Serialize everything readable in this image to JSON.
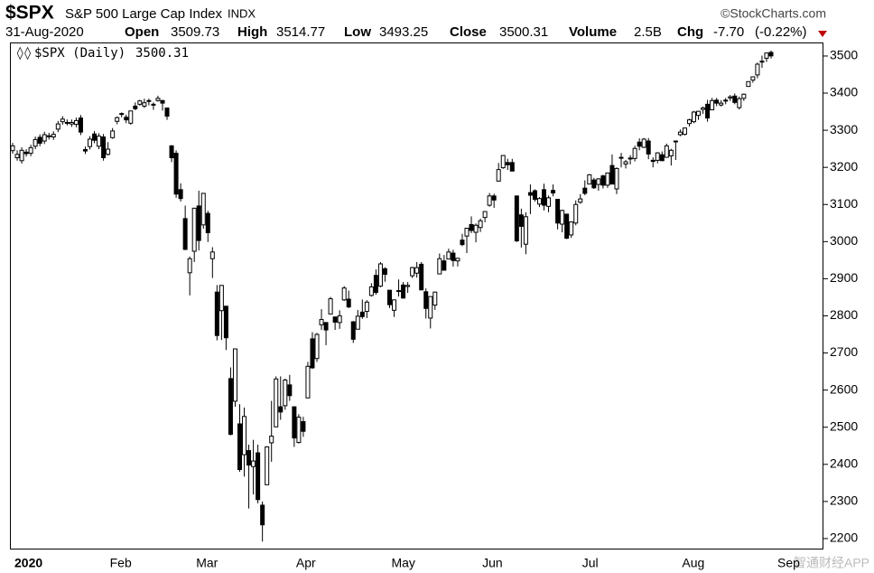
{
  "header": {
    "symbol": "$SPX",
    "name": "S&P 500 Large Cap Index",
    "exchange": "INDX",
    "source": "©StockCharts.com",
    "date": "31-Aug-2020",
    "open_label": "Open",
    "high_label": "High",
    "low_label": "Low",
    "close_label": "Close",
    "volume_label": "Volume",
    "volume": "2.5B",
    "chg_label": "Chg",
    "chg": "-7.70",
    "chg_pct": "(-0.22%)",
    "legend": "$SPX (Daily)",
    "watermark": "智通财经APP"
  },
  "chart_data": {
    "type": "candlestick",
    "colors": {
      "up": "#ffffff",
      "down": "#000000",
      "outline": "#000000"
    },
    "grid": false,
    "ylim": [
      2173,
      3534
    ],
    "yticks": [
      2200,
      2300,
      2400,
      2500,
      2600,
      2700,
      2800,
      2900,
      3000,
      3100,
      3200,
      3300,
      3400,
      3500
    ],
    "categories": [
      "2020",
      null,
      null,
      null,
      null,
      null,
      null,
      null,
      null,
      null,
      null,
      null,
      null,
      null,
      null,
      null,
      null,
      null,
      null,
      null,
      null,
      "Feb",
      null,
      null,
      null,
      null,
      null,
      null,
      null,
      null,
      null,
      null,
      null,
      null,
      null,
      null,
      null,
      null,
      null,
      null,
      "Mar",
      null,
      null,
      null,
      null,
      null,
      null,
      null,
      null,
      null,
      null,
      null,
      null,
      null,
      null,
      null,
      null,
      null,
      null,
      null,
      null,
      null,
      "Apr",
      null,
      null,
      null,
      null,
      null,
      null,
      null,
      null,
      null,
      null,
      null,
      null,
      null,
      null,
      null,
      null,
      null,
      null,
      null,
      null,
      "May",
      null,
      null,
      null,
      null,
      null,
      null,
      null,
      null,
      null,
      null,
      null,
      null,
      null,
      null,
      null,
      null,
      null,
      null,
      null,
      "Jun",
      null,
      null,
      null,
      null,
      null,
      null,
      null,
      null,
      null,
      null,
      null,
      null,
      null,
      null,
      null,
      null,
      null,
      null,
      null,
      null,
      null,
      "Jul",
      null,
      null,
      null,
      null,
      null,
      null,
      null,
      null,
      null,
      null,
      null,
      null,
      null,
      null,
      null,
      null,
      null,
      null,
      null,
      null,
      null,
      "Aug",
      null,
      null,
      null,
      null,
      null,
      null,
      null,
      null,
      null,
      null,
      null,
      null,
      null,
      null,
      null,
      null,
      null,
      null,
      null,
      null,
      "Sep"
    ],
    "open": [
      3245,
      3226,
      3218,
      3241,
      3238,
      3257,
      3281,
      3271,
      3285,
      3282,
      3303,
      3323,
      3321,
      3317,
      3316,
      3333,
      3248,
      3256,
      3290,
      3257,
      3282,
      3235,
      3280,
      3324,
      3344,
      3335,
      3319,
      3365,
      3370,
      3365,
      3378,
      3369,
      3380,
      3380,
      3360,
      3258,
      3238,
      3140,
      3062,
      2916,
      2974,
      3096,
      3045,
      3076,
      2954,
      2864,
      2814,
      2826,
      2631,
      2570,
      2509,
      2426,
      2437,
      2394,
      2431,
      2290,
      2345,
      2458,
      2501,
      2555,
      2558,
      2614,
      2555,
      2459,
      2515,
      2579,
      2738,
      2685,
      2776,
      2782,
      2805,
      2797,
      2782,
      2843,
      2845,
      2784,
      2764,
      2810,
      2812,
      2855,
      2909,
      2880,
      2927,
      2869,
      2815,
      2868,
      2883,
      2879,
      2908,
      2915,
      2939,
      2865,
      2794,
      2829,
      2913,
      2948,
      2953,
      2969,
      2948,
      3004,
      3015,
      3046,
      3025,
      3038,
      3065,
      3098,
      3123,
      3163,
      3199,
      3213,
      3213,
      3123,
      3072,
      2993,
      3132,
      3137,
      3101,
      3140,
      3095,
      3138,
      3114,
      3047,
      3074,
      3018,
      3050,
      3106,
      3144,
      3155,
      3166,
      3154,
      3177,
      3152,
      3205,
      3142,
      3225,
      3209,
      3224,
      3224,
      3268,
      3254,
      3271,
      3219,
      3219,
      3234,
      3227,
      3231,
      3270,
      3288,
      3289,
      3318,
      3323,
      3340,
      3356,
      3370,
      3355,
      3381,
      3368,
      3380,
      3387,
      3392,
      3361,
      3386,
      3418,
      3435,
      3449,
      3486,
      3494,
      3509.73,
      null
    ],
    "high": [
      3266,
      3246,
      3254,
      3249,
      3261,
      3283,
      3289,
      3296,
      3293,
      3297,
      3325,
      3338,
      3329,
      3329,
      3334,
      3341,
      3256,
      3284,
      3298,
      3292,
      3290,
      3268,
      3306,
      3337,
      3348,
      3342,
      3352,
      3375,
      3382,
      3385,
      3385,
      3375,
      3393,
      3382,
      3360,
      3260,
      3246,
      3157,
      3097,
      2960,
      3091,
      3137,
      3131,
      3083,
      2985,
      2883,
      2882,
      2826,
      2661,
      2711,
      2562,
      2553,
      2453,
      2466,
      2453,
      2300,
      2449,
      2571,
      2637,
      2637,
      2631,
      2641,
      2556,
      2535,
      2528,
      2676,
      2756,
      2754,
      2818,
      2782,
      2851,
      2797,
      2815,
      2880,
      2868,
      2786,
      2816,
      2844,
      2842,
      2888,
      2925,
      2945,
      2931,
      2869,
      2844,
      2898,
      2891,
      2891,
      2932,
      2945,
      2945,
      2874,
      2852,
      2865,
      2968,
      2964,
      2981,
      2978,
      2956,
      3021,
      3036,
      3068,
      3049,
      3062,
      3081,
      3131,
      3129,
      3212,
      3233,
      3223,
      3223,
      3123,
      3089,
      3079,
      3154,
      3141,
      3120,
      3156,
      3124,
      3154,
      3115,
      3086,
      3074,
      3054,
      3111,
      3128,
      3165,
      3182,
      3172,
      3171,
      3180,
      3186,
      3235,
      3200,
      3239,
      3220,
      3233,
      3258,
      3278,
      3279,
      3279,
      3227,
      3241,
      3243,
      3264,
      3250,
      3272,
      3302,
      3307,
      3331,
      3352,
      3352,
      3364,
      3382,
      3387,
      3387,
      3381,
      3387,
      3395,
      3399,
      3391,
      3399,
      3432,
      3444,
      3482,
      3501,
      3509,
      3514.77,
      null
    ],
    "low": [
      3237,
      3218,
      3210,
      3229,
      3230,
      3249,
      3257,
      3263,
      3275,
      3274,
      3295,
      3315,
      3313,
      3309,
      3308,
      3287,
      3236,
      3248,
      3265,
      3249,
      3218,
      3232,
      3277,
      3316,
      3335,
      3319,
      3315,
      3354,
      3366,
      3360,
      3367,
      3355,
      3377,
      3353,
      3328,
      3214,
      3118,
      3108,
      2977,
      2855,
      2945,
      2976,
      3035,
      2999,
      2902,
      2734,
      2735,
      2708,
      2478,
      2555,
      2380,
      2367,
      2281,
      2319,
      2295,
      2192,
      2345,
      2407,
      2500,
      2520,
      2547,
      2571,
      2447,
      2456,
      2474,
      2578,
      2657,
      2676,
      2762,
      2721,
      2805,
      2762,
      2765,
      2840,
      2821,
      2727,
      2764,
      2792,
      2794,
      2852,
      2857,
      2877,
      2892,
      2821,
      2797,
      2852,
      2846,
      2862,
      2902,
      2903,
      2869,
      2793,
      2766,
      2816,
      2913,
      2922,
      2953,
      2933,
      2933,
      2988,
      2969,
      3023,
      2998,
      3026,
      3052,
      3094,
      3091,
      3163,
      3196,
      3193,
      3190,
      2999,
      2984,
      2966,
      3074,
      3108,
      3093,
      3084,
      3079,
      3122,
      3033,
      3025,
      3007,
      3010,
      3044,
      3102,
      3125,
      3155,
      3142,
      3137,
      3143,
      3145,
      3155,
      3128,
      3200,
      3197,
      3208,
      3216,
      3246,
      3252,
      3222,
      3200,
      3211,
      3217,
      3227,
      3205,
      3220,
      3284,
      3286,
      3310,
      3319,
      3328,
      3344,
      3323,
      3355,
      3365,
      3364,
      3370,
      3379,
      3370,
      3356,
      3379,
      3418,
      3428,
      3440,
      3468,
      3484,
      3493.25,
      null
    ],
    "close": [
      3258,
      3235,
      3246,
      3237,
      3253,
      3275,
      3265,
      3288,
      3283,
      3289,
      3317,
      3330,
      3321,
      3321,
      3326,
      3295,
      3244,
      3276,
      3273,
      3284,
      3226,
      3249,
      3298,
      3334,
      3345,
      3328,
      3352,
      3358,
      3379,
      3374,
      3380,
      3370,
      3386,
      3373,
      3338,
      3226,
      3128,
      3116,
      2979,
      2954,
      3090,
      3003,
      3130,
      3024,
      2972,
      2747,
      2882,
      2741,
      2481,
      2711,
      2386,
      2529,
      2398,
      2409,
      2305,
      2237,
      2447,
      2476,
      2630,
      2541,
      2627,
      2585,
      2471,
      2527,
      2489,
      2664,
      2660,
      2750,
      2790,
      2762,
      2846,
      2783,
      2800,
      2875,
      2824,
      2737,
      2799,
      2798,
      2837,
      2878,
      2863,
      2940,
      2912,
      2830,
      2843,
      2868,
      2848,
      2882,
      2930,
      2930,
      2870,
      2820,
      2852,
      2864,
      2954,
      2923,
      2972,
      2949,
      2955,
      2992,
      3036,
      3030,
      3044,
      3056,
      3081,
      3123,
      3112,
      3194,
      3232,
      3207,
      3190,
      3002,
      3041,
      3067,
      3125,
      3114,
      3116,
      3098,
      3118,
      3131,
      3050,
      3084,
      3009,
      3053,
      3100,
      3115,
      3130,
      3180,
      3145,
      3169,
      3152,
      3185,
      3155,
      3197,
      3227,
      3215,
      3225,
      3251,
      3257,
      3276,
      3236,
      3216,
      3239,
      3218,
      3258,
      3246,
      3271,
      3295,
      3306,
      3328,
      3349,
      3351,
      3360,
      3333,
      3380,
      3373,
      3373,
      3381,
      3390,
      3375,
      3385,
      3397,
      3431,
      3444,
      3478,
      3484,
      3508,
      3500.31,
      null
    ]
  }
}
